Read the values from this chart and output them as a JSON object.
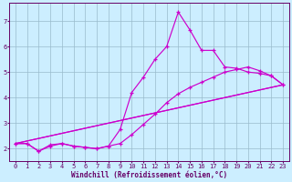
{
  "xlabel": "Windchill (Refroidissement éolien,°C)",
  "background_color": "#cceeff",
  "line_color": "#cc00cc",
  "grid_color": "#99bbcc",
  "axis_color": "#660066",
  "text_color": "#660066",
  "xlim": [
    -0.5,
    23.5
  ],
  "ylim": [
    1.5,
    7.7
  ],
  "yticks": [
    2,
    3,
    4,
    5,
    6,
    7
  ],
  "xticks": [
    0,
    1,
    2,
    3,
    4,
    5,
    6,
    7,
    8,
    9,
    10,
    11,
    12,
    13,
    14,
    15,
    16,
    17,
    18,
    19,
    20,
    21,
    22,
    23
  ],
  "line1_x": [
    0,
    1,
    2,
    3,
    4,
    5,
    6,
    7,
    8,
    9,
    10,
    11,
    12,
    13,
    14,
    15,
    16,
    17,
    18,
    19,
    20,
    21,
    22,
    23
  ],
  "line1_y": [
    2.2,
    2.2,
    1.9,
    2.15,
    2.2,
    2.1,
    2.05,
    2.0,
    2.1,
    2.75,
    4.2,
    4.8,
    5.5,
    6.0,
    7.35,
    6.65,
    5.85,
    5.85,
    5.2,
    5.15,
    5.0,
    4.95,
    4.85,
    4.5
  ],
  "line2_x": [
    0,
    1,
    2,
    3,
    4,
    5,
    6,
    7,
    8,
    9,
    10,
    11,
    12,
    13,
    14,
    15,
    16,
    17,
    18,
    19,
    20,
    21,
    22,
    23
  ],
  "line2_y": [
    2.2,
    2.2,
    1.9,
    2.1,
    2.2,
    2.1,
    2.05,
    2.0,
    2.1,
    2.2,
    2.55,
    2.95,
    3.35,
    3.8,
    4.15,
    4.4,
    4.6,
    4.8,
    5.0,
    5.1,
    5.2,
    5.05,
    4.85,
    4.5
  ],
  "line3_x": [
    0,
    23
  ],
  "line3_y": [
    2.2,
    4.5
  ],
  "line4_x": [
    0,
    23
  ],
  "line4_y": [
    2.2,
    4.5
  ],
  "xlabel_fontsize": 5.5,
  "tick_fontsize": 5.0
}
